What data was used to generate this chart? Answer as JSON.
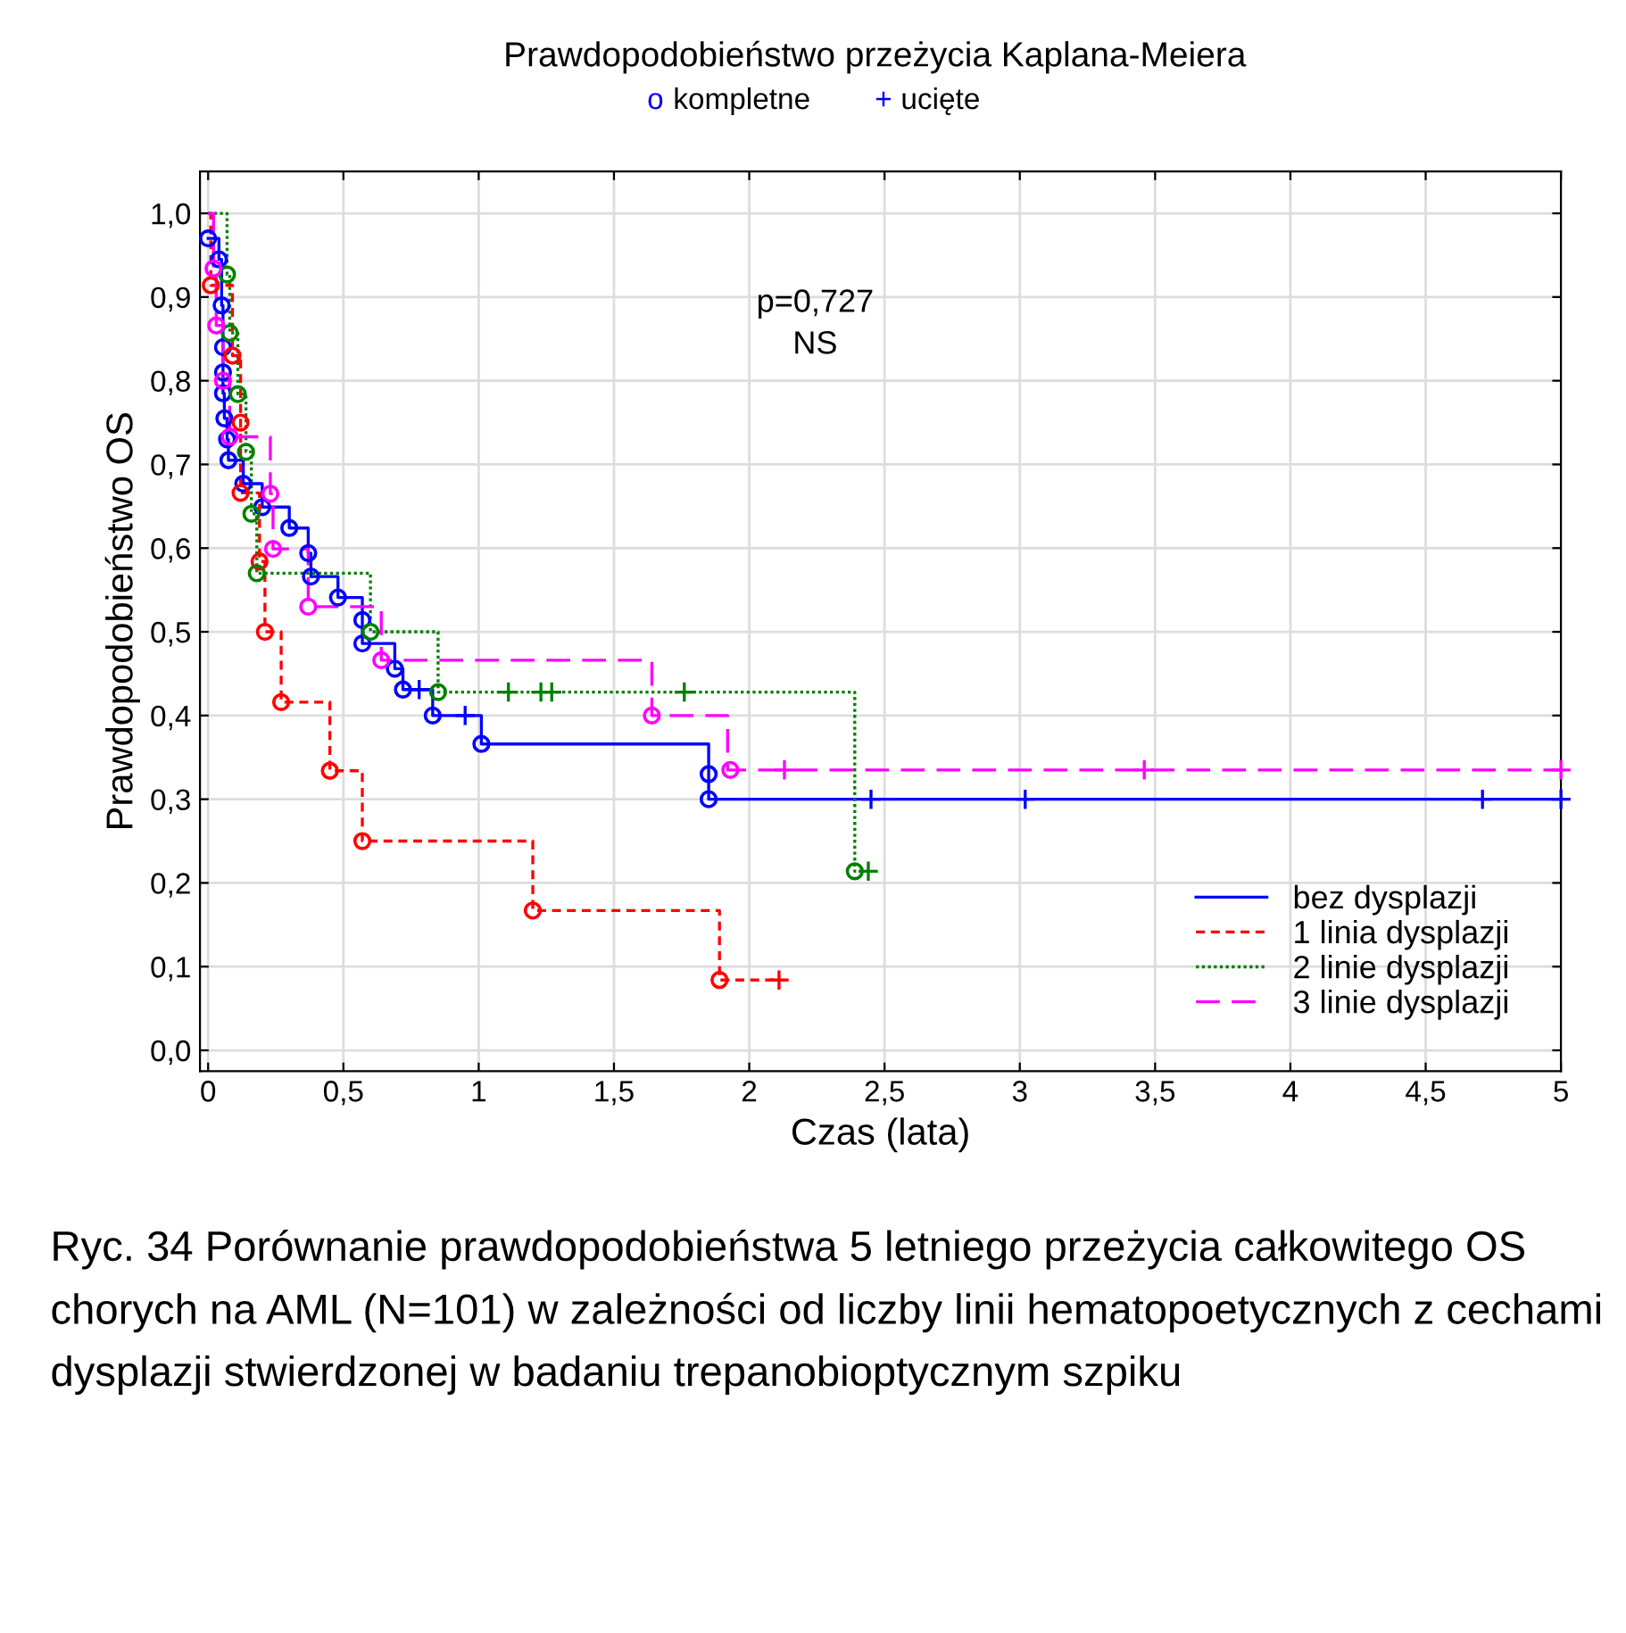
{
  "chart_data": {
    "type": "step",
    "title": "Prawdopodobieństwo przeżycia Kaplana-Meiera",
    "xlabel": "Czas (lata)",
    "ylabel": "Prawdopodobieństwo OS",
    "xlim": [
      -0.03,
      5
    ],
    "ylim": [
      -0.025,
      1.05
    ],
    "xticks": [
      0,
      {
        "value": 0.5,
        "label": "0,5"
      },
      1,
      {
        "value": 1.5,
        "label": "1,5"
      },
      2,
      {
        "value": 2.5,
        "label": "2,5"
      },
      3,
      {
        "value": 3.5,
        "label": "3,5"
      },
      4,
      {
        "value": 4.5,
        "label": "4,5"
      },
      5
    ],
    "yticks": [
      {
        "value": 0,
        "label": "0,0"
      },
      {
        "value": 0.1,
        "label": "0,1"
      },
      {
        "value": 0.2,
        "label": "0,2"
      },
      {
        "value": 0.3,
        "label": "0,3"
      },
      {
        "value": 0.4,
        "label": "0,4"
      },
      {
        "value": 0.5,
        "label": "0,5"
      },
      {
        "value": 0.6,
        "label": "0,6"
      },
      {
        "value": 0.7,
        "label": "0,7"
      },
      {
        "value": 0.8,
        "label": "0,8"
      },
      {
        "value": 0.9,
        "label": "0,9"
      },
      {
        "value": 1.0,
        "label": "1,0"
      }
    ],
    "grid": true,
    "legend": "bottom right",
    "series": [
      {
        "name": "bez dysplazji",
        "color": "#0000ff",
        "line_style": "solid",
        "x": [
          0,
          0.04,
          0.05,
          0.055,
          0.055,
          0.055,
          0.06,
          0.07,
          0.075,
          0.13,
          0.2,
          0.3,
          0.37,
          0.38,
          0.48,
          0.57,
          0.57,
          0.69,
          0.72,
          0.83,
          1.01,
          1.85,
          1.85,
          5
        ],
        "values": [
          0.97,
          0.945,
          0.89,
          0.84,
          0.81,
          0.785,
          0.755,
          0.73,
          0.705,
          0.677,
          0.649,
          0.624,
          0.594,
          0.566,
          0.541,
          0.514,
          0.486,
          0.456,
          0.431,
          0.4,
          0.366,
          0.33,
          0.3,
          0.3
        ]
      },
      {
        "name": "1 linia dysplazji",
        "color": "#ff0000",
        "line_style": "dashed",
        "x": [
          0,
          0.01,
          0.09,
          0.12,
          0.12,
          0.19,
          0.21,
          0.27,
          0.45,
          0.57,
          1.2,
          1.89,
          2.11
        ],
        "values": [
          1.0,
          0.914,
          0.83,
          0.75,
          0.666,
          0.584,
          0.5,
          0.416,
          0.334,
          0.25,
          0.167,
          0.084,
          0.084
        ]
      },
      {
        "name": "2 linie dysplazji",
        "color": "#008000",
        "line_style": "dotted",
        "x": [
          0,
          0.07,
          0.08,
          0.11,
          0.14,
          0.16,
          0.18,
          0.6,
          0.85,
          2.39,
          2.44
        ],
        "values": [
          1.0,
          0.927,
          0.857,
          0.784,
          0.715,
          0.641,
          0.57,
          0.5,
          0.428,
          0.214,
          0.214
        ]
      },
      {
        "name": "3 linie dysplazji",
        "color": "#ff00ff",
        "line_style": "longdash",
        "x": [
          0,
          0.02,
          0.03,
          0.055,
          0.08,
          0.23,
          0.24,
          0.37,
          0.64,
          1.64,
          1.92,
          5
        ],
        "values": [
          1.0,
          0.934,
          0.866,
          0.8,
          0.733,
          0.665,
          0.599,
          0.53,
          0.466,
          0.4,
          0.335,
          0.335
        ]
      },
      {
        "type": "scatter",
        "marker": "circle",
        "color": "#0000ff",
        "x": [
          0,
          0.04,
          0.05,
          0.055,
          0.055,
          0.055,
          0.06,
          0.07,
          0.075,
          0.13,
          0.2,
          0.3,
          0.37,
          0.38,
          0.48,
          0.57,
          0.57,
          0.69,
          0.72,
          0.83,
          1.01,
          1.85,
          1.85,
          0.01,
          0.09,
          0.12,
          0.12,
          0.19,
          0.21,
          0.27,
          0.45,
          0.57,
          1.2,
          1.89,
          0.07,
          0.08,
          0.11,
          0.14,
          0.16,
          0.18,
          0.6,
          0.85,
          2.39,
          0.02,
          0.03,
          0.055,
          0.08,
          0.23,
          0.24,
          0.37,
          0.64,
          1.64,
          1.93
        ],
        "values": [
          0.97,
          0.945,
          0.89,
          0.84,
          0.81,
          0.785,
          0.755,
          0.73,
          0.705,
          0.677,
          0.649,
          0.624,
          0.594,
          0.566,
          0.541,
          0.514,
          0.486,
          0.456,
          0.431,
          0.4,
          0.366,
          0.33,
          0.3,
          0.914,
          0.83,
          0.75,
          0.666,
          0.584,
          0.5,
          0.416,
          0.334,
          0.25,
          0.167,
          0.084,
          0.927,
          0.857,
          0.784,
          0.715,
          0.641,
          0.57,
          0.5,
          0.428,
          0.214,
          0.934,
          0.866,
          0.8,
          0.733,
          0.665,
          0.599,
          0.53,
          0.466,
          0.4,
          0.335
        ],
        "colors": [
          "#0000ff",
          "#0000ff",
          "#0000ff",
          "#0000ff",
          "#0000ff",
          "#0000ff",
          "#0000ff",
          "#0000ff",
          "#0000ff",
          "#0000ff",
          "#0000ff",
          "#0000ff",
          "#0000ff",
          "#0000ff",
          "#0000ff",
          "#0000ff",
          "#0000ff",
          "#0000ff",
          "#0000ff",
          "#0000ff",
          "#0000ff",
          "#0000ff",
          "#0000ff",
          "#ff0000",
          "#ff0000",
          "#ff0000",
          "#ff0000",
          "#ff0000",
          "#ff0000",
          "#ff0000",
          "#ff0000",
          "#ff0000",
          "#ff0000",
          "#ff0000",
          "#008000",
          "#008000",
          "#008000",
          "#008000",
          "#008000",
          "#008000",
          "#008000",
          "#008000",
          "#008000",
          "#ff00ff",
          "#ff00ff",
          "#ff00ff",
          "#ff00ff",
          "#ff00ff",
          "#ff00ff",
          "#ff00ff",
          "#ff00ff",
          "#ff00ff",
          "#ff00ff"
        ]
      },
      {
        "type": "scatter",
        "marker": "cross",
        "color": "#0000ff",
        "x": [
          0.78,
          0.95,
          2.45,
          3.02,
          4.71,
          5.0,
          2.11,
          1.11,
          1.23,
          1.27,
          1.76,
          2.44,
          2.13,
          3.46,
          5.0
        ],
        "values": [
          0.431,
          0.4,
          0.3,
          0.3,
          0.3,
          0.3,
          0.084,
          0.428,
          0.428,
          0.428,
          0.428,
          0.214,
          0.335,
          0.335,
          0.335
        ],
        "colors": [
          "#0000ff",
          "#0000ff",
          "#0000ff",
          "#0000ff",
          "#0000ff",
          "#0000ff",
          "#ff0000",
          "#008000",
          "#008000",
          "#008000",
          "#008000",
          "#008000",
          "#ff00ff",
          "#ff00ff",
          "#ff00ff"
        ]
      }
    ],
    "annotations": [
      "p=0,727\nNS",
      "o kompletne",
      "+ ucięte",
      "Ryc. 34 Porównanie prawdopodobieństwa 5 letniego przeżycia całkowitego OS chorych na AML (N=101) w zależności od liczby linii hematopoetycznych z cechami dysplazji stwierdzonej w badaniu trepanobioptycznym szpiku"
    ]
  }
}
